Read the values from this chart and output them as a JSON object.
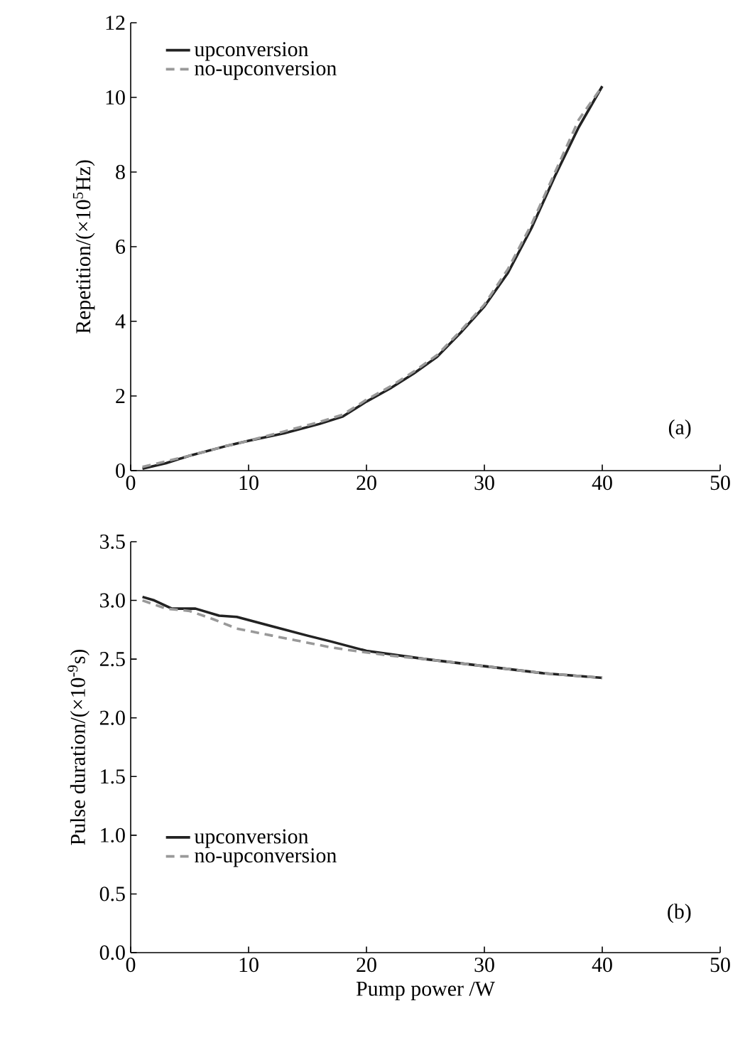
{
  "chart_data": [
    {
      "type": "line",
      "ylabel": "Repetition/(×10$^{5}$Hz)",
      "xlim": [
        0,
        50
      ],
      "ylim": [
        0,
        12
      ],
      "xticks": [
        0,
        10,
        20,
        30,
        40,
        50
      ],
      "yticks": [
        0,
        2,
        4,
        6,
        8,
        10,
        12
      ],
      "legend": "top left",
      "grid": false,
      "marker": "none",
      "annotations": [
        "(a)"
      ],
      "series": [
        {
          "name": "upconversion",
          "color": "#222222",
          "line_style": "solid",
          "x": [
            1,
            3,
            5,
            8,
            10,
            13,
            16,
            18,
            20,
            22,
            24,
            26,
            28,
            30,
            32,
            34,
            36,
            38,
            40
          ],
          "values": [
            0.05,
            0.2,
            0.4,
            0.65,
            0.8,
            1.0,
            1.25,
            1.45,
            1.85,
            2.2,
            2.6,
            3.05,
            3.7,
            4.4,
            5.3,
            6.5,
            7.9,
            9.2,
            10.3
          ]
        },
        {
          "name": "no-upconversion",
          "color": "#999999",
          "line_style": "dashed",
          "x": [
            1,
            3,
            5,
            8,
            10,
            13,
            16,
            18,
            20,
            22,
            24,
            26,
            28,
            30,
            32,
            34,
            36,
            38,
            40
          ],
          "values": [
            0.1,
            0.25,
            0.4,
            0.65,
            0.8,
            1.05,
            1.3,
            1.5,
            1.9,
            2.25,
            2.65,
            3.1,
            3.75,
            4.45,
            5.4,
            6.6,
            8.0,
            9.4,
            10.3
          ]
        }
      ]
    },
    {
      "type": "line",
      "xlabel": "Pump power /W",
      "ylabel": "Pulse duration/(×10$^{-9}$s)",
      "xlim": [
        0,
        50
      ],
      "ylim": [
        0,
        3.5
      ],
      "xticks": [
        0,
        10,
        20,
        30,
        40,
        50
      ],
      "yticks": [
        {
          "value": 0,
          "label": "0.0"
        },
        {
          "value": 0.5,
          "label": "0.5"
        },
        {
          "value": 1,
          "label": "1.0"
        },
        {
          "value": 1.5,
          "label": "1.5"
        },
        {
          "value": 2,
          "label": "2.0"
        },
        {
          "value": 2.5,
          "label": "2.5"
        },
        {
          "value": 3,
          "label": "3.0"
        },
        {
          "value": 3.5,
          "label": "3.5"
        }
      ],
      "legend": "bottom left",
      "grid": false,
      "marker": "none",
      "annotations": [
        "(b)"
      ],
      "series": [
        {
          "name": "upconversion",
          "color": "#222222",
          "line_style": "solid",
          "x": [
            1,
            2,
            3.5,
            5.5,
            7.5,
            9,
            12,
            15,
            17,
            20,
            25,
            30,
            35,
            40
          ],
          "values": [
            3.03,
            3.0,
            2.93,
            2.93,
            2.87,
            2.86,
            2.78,
            2.7,
            2.65,
            2.57,
            2.5,
            2.44,
            2.38,
            2.34
          ]
        },
        {
          "name": "no-upconversion",
          "color": "#999999",
          "line_style": "dashed",
          "x": [
            1,
            3,
            5,
            7,
            9,
            12,
            14,
            17,
            19,
            22,
            25,
            30,
            35,
            40
          ],
          "values": [
            3.0,
            2.93,
            2.91,
            2.84,
            2.76,
            2.7,
            2.66,
            2.6,
            2.57,
            2.53,
            2.5,
            2.44,
            2.38,
            2.34
          ]
        }
      ]
    }
  ]
}
